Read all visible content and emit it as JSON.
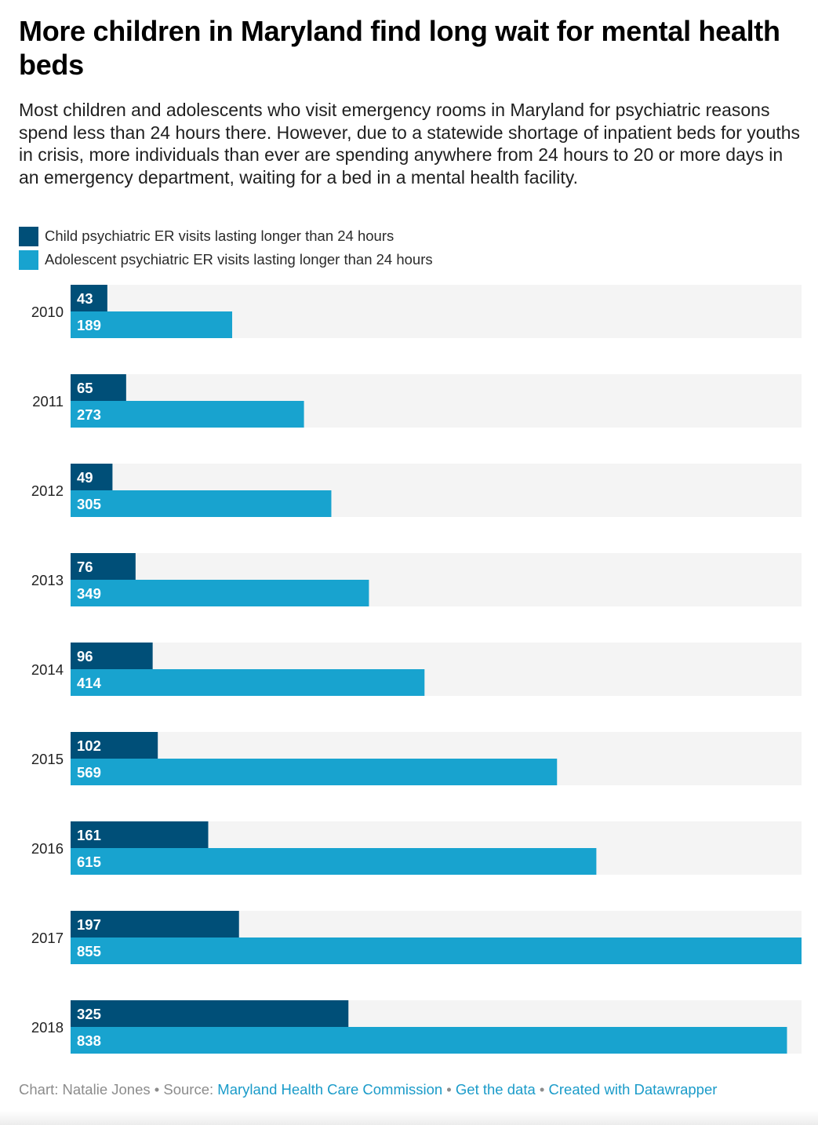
{
  "title": "More children in Maryland find long wait for mental health beds",
  "subtitle": "Most children and adolescents who visit emergency rooms in Maryland for psychiatric reasons spend less than 24 hours there. However, due to a statewide shortage of inpatient beds for youths in crisis, more individuals than ever are spending anywhere from 24 hours to 20 or more days in an emergency department, waiting for a bed in a mental health facility.",
  "colors": {
    "child": "#004f78",
    "adolescent": "#18a3cf",
    "track": "#f4f4f4"
  },
  "chart_data": {
    "type": "bar",
    "orientation": "horizontal",
    "grouped": true,
    "title": "More children in Maryland find long wait for mental health beds",
    "categories": [
      "2010",
      "2011",
      "2012",
      "2013",
      "2014",
      "2015",
      "2016",
      "2017",
      "2018"
    ],
    "xlim": [
      0,
      855
    ],
    "legend_position": "top-left",
    "series": [
      {
        "name": "Child psychiatric ER visits lasting longer than 24 hours",
        "color": "#004f78",
        "values": [
          43,
          65,
          49,
          76,
          96,
          102,
          161,
          197,
          325
        ]
      },
      {
        "name": "Adolescent psychiatric ER visits lasting longer than 24 hours",
        "color": "#18a3cf",
        "values": [
          189,
          273,
          305,
          349,
          414,
          569,
          615,
          855,
          838
        ]
      }
    ]
  },
  "footer": {
    "chart_credit": "Chart: Natalie Jones",
    "separator": "•",
    "source_prefix": "Source:",
    "source_link": "Maryland Health Care Commission",
    "get_data": "Get the data",
    "created_with": "Created with Datawrapper"
  }
}
